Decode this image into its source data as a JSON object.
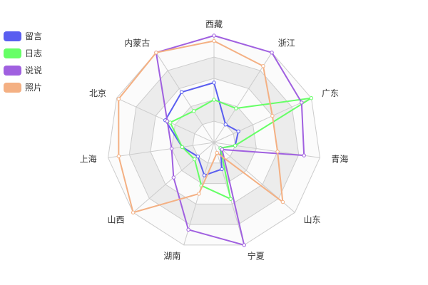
{
  "chart_data": {
    "type": "radar",
    "indicators": [
      "西藏",
      "浙江",
      "广东",
      "青海",
      "山东",
      "宁夏",
      "湖南",
      "山西",
      "上海",
      "北京",
      "内蒙古"
    ],
    "max": 100,
    "split_number": 5,
    "split_area": true,
    "grid": true,
    "legend": {
      "position": "top-left",
      "orient": "vertical"
    },
    "series": [
      {
        "name": "留言",
        "color": "#5a5ef0",
        "values": [
          56,
          20,
          25,
          20,
          8,
          26,
          32,
          20,
          30,
          50,
          56
        ]
      },
      {
        "name": "日志",
        "color": "#66ff66",
        "values": [
          40,
          38,
          100,
          20,
          8,
          55,
          42,
          24,
          30,
          45,
          35
        ]
      },
      {
        "name": "说说",
        "color": "#a060e0",
        "values": [
          100,
          100,
          90,
          85,
          10,
          100,
          85,
          50,
          40,
          48,
          100
        ]
      },
      {
        "name": "照片",
        "color": "#f4b083",
        "values": [
          95,
          85,
          60,
          60,
          85,
          10,
          50,
          100,
          90,
          98,
          100
        ]
      }
    ]
  }
}
